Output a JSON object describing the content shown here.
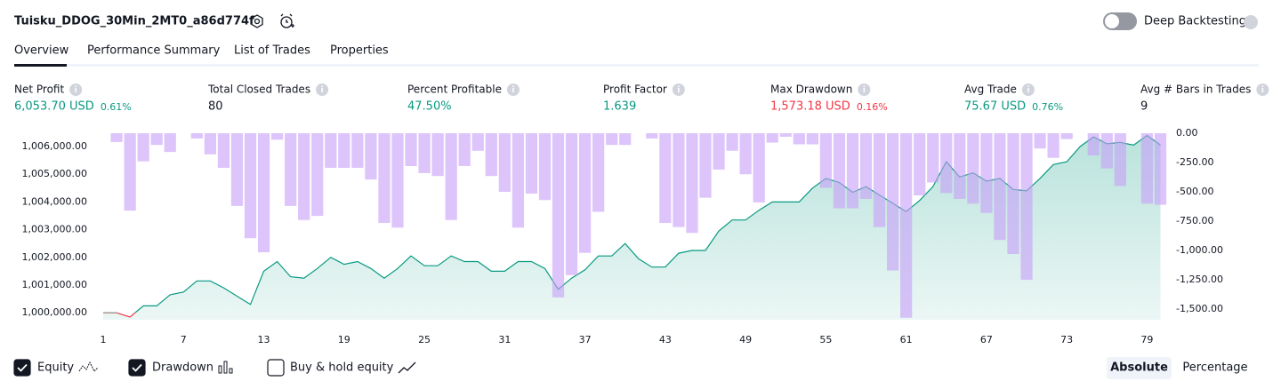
{
  "header": {
    "title": "Tuisku_DDOG_30Min_2MT0_a86d774f",
    "deep_backtesting": "Deep Backtesting"
  },
  "tabs": [
    "Overview",
    "Performance Summary",
    "List of Trades",
    "Properties"
  ],
  "metrics": [
    {
      "label": "Net Profit",
      "value": "6,053.70 USD",
      "percent": "0.61%",
      "color": "#089981"
    },
    {
      "label": "Total Closed Trades",
      "value": "80",
      "color": "#131722"
    },
    {
      "label": "Percent Profitable",
      "value": "47.50%",
      "color": "#089981"
    },
    {
      "label": "Profit Factor",
      "value": "1.639",
      "color": "#089981"
    },
    {
      "label": "Max Drawdown",
      "value": "1,573.18 USD",
      "percent": "0.16%",
      "color": "#f23645"
    },
    {
      "label": "Avg Trade",
      "value": "75.67 USD",
      "percent": "0.76%",
      "color": "#089981"
    },
    {
      "label": "Avg # Bars in Trades",
      "value": "9",
      "color": "#131722"
    }
  ],
  "chart_data": {
    "type": "combo",
    "x": [
      1,
      2,
      3,
      4,
      5,
      6,
      7,
      8,
      9,
      10,
      11,
      12,
      13,
      14,
      15,
      16,
      17,
      18,
      19,
      20,
      21,
      22,
      23,
      24,
      25,
      26,
      27,
      28,
      29,
      30,
      31,
      32,
      33,
      34,
      35,
      36,
      37,
      38,
      39,
      40,
      41,
      42,
      43,
      44,
      45,
      46,
      47,
      48,
      49,
      50,
      51,
      52,
      53,
      54,
      55,
      56,
      57,
      58,
      59,
      60,
      61,
      62,
      63,
      64,
      65,
      66,
      67,
      68,
      69,
      70,
      71,
      72,
      73,
      74,
      75,
      76,
      77,
      78,
      79,
      80
    ],
    "xlim": [
      0.5,
      80.5
    ],
    "xticks": [
      1,
      7,
      13,
      19,
      25,
      31,
      37,
      43,
      49,
      55,
      61,
      67,
      73,
      79
    ],
    "ylim": [
      999750,
      1006480
    ],
    "yticks": [
      {
        "value": 1000000,
        "label": "1,000,000.00"
      },
      {
        "value": 1001000,
        "label": "1,001,000.00"
      },
      {
        "value": 1002000,
        "label": "1,002,000.00"
      },
      {
        "value": 1003000,
        "label": "1,003,000.00"
      },
      {
        "value": 1004000,
        "label": "1,004,000.00"
      },
      {
        "value": 1005000,
        "label": "1,005,000.00"
      },
      {
        "value": 1006000,
        "label": "1,006,000.00"
      }
    ],
    "y2lim": [
      0,
      -1590
    ],
    "y2ticks": [
      {
        "value": 0,
        "label": "0.00"
      },
      {
        "value": -250,
        "label": "-250.00"
      },
      {
        "value": -500,
        "label": "-500.00"
      },
      {
        "value": -750,
        "label": "-750.00"
      },
      {
        "value": -1000,
        "label": "-1,000.00"
      },
      {
        "value": -1250,
        "label": "-1,250.00"
      },
      {
        "value": -1500,
        "label": "-1,500.00"
      }
    ],
    "baseline": 1000000,
    "series": [
      {
        "name": "Drawdown",
        "type": "bar",
        "axis": "y2",
        "color": "#c79ef8",
        "values": [
          0,
          -75,
          -660,
          -240,
          -100,
          -160,
          0,
          -45,
          -180,
          -295,
          -620,
          -895,
          -1015,
          -55,
          -620,
          -740,
          -705,
          -295,
          -295,
          -295,
          -395,
          -765,
          -805,
          -280,
          -340,
          -365,
          -740,
          -280,
          -150,
          -365,
          -500,
          -805,
          -515,
          -570,
          -1400,
          -1210,
          -1020,
          -670,
          -100,
          -100,
          0,
          -45,
          -765,
          -800,
          -850,
          -550,
          -310,
          -150,
          -350,
          -590,
          -80,
          -30,
          -95,
          -95,
          -465,
          -640,
          -640,
          -560,
          -800,
          -1170,
          -1573.18,
          -530,
          -420,
          -510,
          -560,
          -600,
          -680,
          -910,
          -1030,
          -1250,
          -130,
          -210,
          -50,
          0,
          -190,
          -300,
          -450,
          0,
          -600,
          -610
        ]
      },
      {
        "name": "Equity",
        "type": "line",
        "color": "#089981",
        "below_color": "#f23645",
        "values": [
          1000000,
          1000000,
          999850,
          1000250,
          1000250,
          1000650,
          1000750,
          1001150,
          1001150,
          1000900,
          1000600,
          1000300,
          1001500,
          1001850,
          1001300,
          1001250,
          1001600,
          1002000,
          1001750,
          1001850,
          1001600,
          1001250,
          1001600,
          1002050,
          1001700,
          1001700,
          1002050,
          1001850,
          1001850,
          1001500,
          1001500,
          1001850,
          1001850,
          1001600,
          1000850,
          1001250,
          1001550,
          1002050,
          1002050,
          1002500,
          1001950,
          1001650,
          1001650,
          1002150,
          1002250,
          1002250,
          1002950,
          1003350,
          1003350,
          1003700,
          1004000,
          1004000,
          1004000,
          1004500,
          1004850,
          1004700,
          1004350,
          1004550,
          1004250,
          1003950,
          1003650,
          1004050,
          1004550,
          1005450,
          1004900,
          1005050,
          1004750,
          1004850,
          1004450,
          1004400,
          1004850,
          1005350,
          1005450,
          1006000,
          1006350,
          1006100,
          1006150,
          1006050,
          1006400,
          1006053.7
        ]
      }
    ]
  },
  "legend_extra": "Buy & hold equity",
  "modes": [
    "Absolute",
    "Percentage"
  ]
}
